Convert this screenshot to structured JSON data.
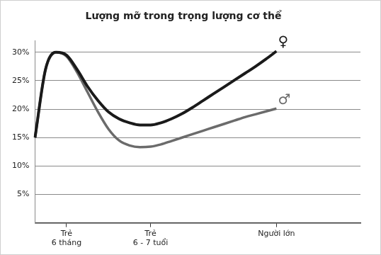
{
  "chart_data": {
    "type": "line",
    "title": "Lượng mỡ trong trọng lượng cơ thể",
    "categories": [
      null,
      null,
      null,
      [
        "Trẻ",
        "6 tháng"
      ],
      null,
      null,
      null,
      null,
      null,
      null,
      null,
      [
        "Trẻ",
        "6 - 7 tuổi"
      ],
      null,
      null,
      null,
      null,
      null,
      null,
      null,
      null,
      null,
      null,
      null,
      "Người lớn",
      null,
      null,
      null,
      null,
      null,
      null,
      null,
      null
    ],
    "series": [
      {
        "name": "♀",
        "color": "#1a1a1a",
        "values": [
          15,
          27,
          30,
          29.5,
          27,
          24,
          21.5,
          19.5,
          18.3,
          17.6,
          17.2,
          17.2,
          17.6,
          18.3,
          19.2,
          20.3,
          21.5,
          22.7,
          23.9,
          25.1,
          26.3,
          27.5,
          28.8,
          30.2,
          null,
          null,
          null,
          null,
          null,
          null,
          null,
          null
        ]
      },
      {
        "name": "♂",
        "color": "#6b6b6b",
        "values": [
          15,
          27,
          30,
          29.3,
          26.5,
          23,
          19.5,
          16.5,
          14.5,
          13.6,
          13.3,
          13.4,
          13.8,
          14.4,
          15,
          15.6,
          16.2,
          16.8,
          17.4,
          18,
          18.6,
          19.1,
          19.6,
          20.1,
          null,
          null,
          null,
          null,
          null,
          null,
          null,
          null
        ]
      }
    ],
    "ylim": [
      0,
      32
    ],
    "yticks": [
      {
        "value": 5,
        "label": "5%"
      },
      {
        "value": 10,
        "label": "10%"
      },
      {
        "value": 15,
        "label": "15%"
      },
      {
        "value": 20,
        "label": "20%"
      },
      {
        "value": 25,
        "label": "25%"
      },
      {
        "value": 30,
        "label": "30%"
      }
    ],
    "grid": true
  }
}
